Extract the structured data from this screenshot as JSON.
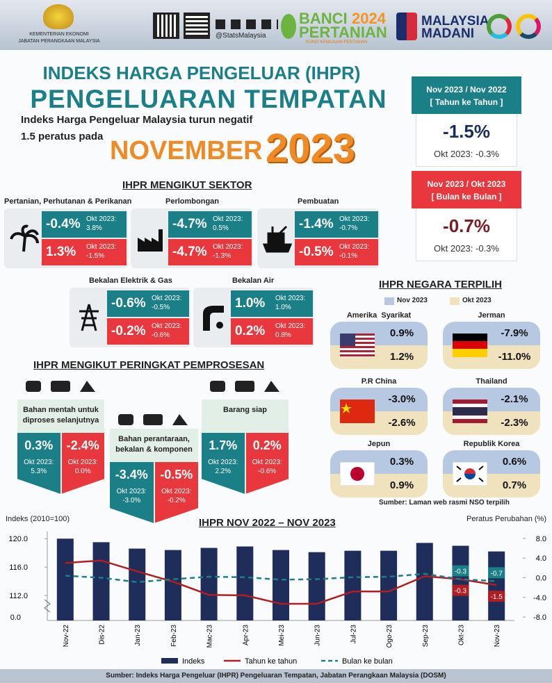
{
  "header": {
    "ministry": "KEMENTERIAN EKONOMI",
    "department": "JABATAN PERANGKAAN MALAYSIA",
    "social": "@StatsMalaysia",
    "census": {
      "line1": "BANCI",
      "year": "2024",
      "line2": "PERTANIAN",
      "tagline": "KUNCI KEMAJUAN PERTANIAN"
    },
    "madani": {
      "line1": "MALAYSIA",
      "line2": "MADANI"
    }
  },
  "title": {
    "line1": "INDEKS HARGA PENGELUAR (IHPR)",
    "line2": "PENGELUARAN TEMPATAN",
    "intro1": "Indeks Harga Pengeluar Malaysia turun negatif",
    "intro2": "1.5 peratus pada",
    "month": "NOVEMBER",
    "year": "2023"
  },
  "summary": [
    {
      "header": "Nov 2023 / Nov 2022",
      "subheader": "[ Tahun ke Tahun ]",
      "value": "-1.5%",
      "previous": "Okt 2023: -0.3%"
    },
    {
      "header": "Nov 2023 / Okt 2023",
      "subheader": "[ Bulan ke Bulan ]",
      "value": "-0.7%",
      "previous": "Okt 2023: -0.3%"
    }
  ],
  "sectors": {
    "title": "IHPR MENGIKUT SEKTOR",
    "items": [
      {
        "name": "Pertanian, Perhutanan & Perikanan",
        "yoy": "-0.4%",
        "yoy_previous": "Okt 2023: 3.8%",
        "mom": "1.3%",
        "mom_previous": "Okt 2023: -1.5%"
      },
      {
        "name": "Perlombongan",
        "yoy": "-4.7%",
        "yoy_previous": "Okt 2023: 0.5%",
        "mom": "-4.7%",
        "mom_previous": "Okt 2023: -1.3%"
      },
      {
        "name": "Pembuatan",
        "yoy": "-1.4%",
        "yoy_previous": "Okt 2023: -0.7%",
        "mom": "-0.5%",
        "mom_previous": "Okt 2023: -0.1%"
      },
      {
        "name": "Bekalan Elektrik & Gas",
        "yoy": "-0.6%",
        "yoy_previous": "Okt 2023: -0.5%",
        "mom": "-0.2%",
        "mom_previous": "Okt 2023: -0.6%"
      },
      {
        "name": "Bekalan Air",
        "yoy": "1.0%",
        "yoy_previous": "Okt 2023: 1.0%",
        "mom": "0.2%",
        "mom_previous": "Okt 2023: 0.8%"
      }
    ]
  },
  "stages": {
    "title": "IHPR MENGIKUT PERINGKAT PEMPROSESAN",
    "items": [
      {
        "name": "Bahan mentah untuk diproses selanjutnya",
        "yoy": "0.3%",
        "yoy_previous": "Okt 2023: 5.3%",
        "mom": "-2.4%",
        "mom_previous": "Okt 2023: 0.0%"
      },
      {
        "name": "Bahan perantaraan, bekalan & komponen",
        "yoy": "-3.4%",
        "yoy_previous": "Okt 2023: -3.0%",
        "mom": "-0.5%",
        "mom_previous": "Okt 2023: -0.2%"
      },
      {
        "name": "Barang siap",
        "yoy": "1.7%",
        "yoy_previous": "Okt 2023: 2.2%",
        "mom": "0.2%",
        "mom_previous": "Okt 2023: -0.6%"
      }
    ]
  },
  "countries": {
    "title": "IHPR NEGARA TERPILIH",
    "legend": [
      "Nov 2023",
      "Okt 2023"
    ],
    "items": [
      {
        "name": "Amerika  Syarikat",
        "nov": "0.9%",
        "okt": "1.2%"
      },
      {
        "name": "Jerman",
        "nov": "-7.9%",
        "okt": "-11.0%"
      },
      {
        "name": "P.R China",
        "nov": "-3.0%",
        "okt": "-2.6%"
      },
      {
        "name": "Thailand",
        "nov": "-2.1%",
        "okt": "-2.3%"
      },
      {
        "name": "Jepun",
        "nov": "0.3%",
        "okt": "0.9%"
      },
      {
        "name": "Republik Korea",
        "nov": "0.6%",
        "okt": "0.7%"
      }
    ],
    "source": "Sumber: Laman web rasmi NSO terpilih"
  },
  "chart_data": {
    "type": "combo",
    "title": "IHPR NOV 2022 – NOV 2023",
    "y_label": "Indeks (2010=100)",
    "y2_label": "Peratus Perubahan (%)",
    "categories": [
      "Nov-22",
      "Dis-22",
      "Jan-23",
      "Feb-23",
      "Mac-23",
      "Apr-23",
      "Mei-23",
      "Jun-23",
      "Jul-23",
      "Ogo-23",
      "Sep-23",
      "Okt-23",
      "Nov-23"
    ],
    "series": [
      {
        "name": "Indeks",
        "type": "bar",
        "color": "#1f2d5a",
        "values": [
          120.0,
          119.5,
          118.6,
          118.4,
          118.7,
          118.9,
          118.4,
          118.1,
          118.3,
          118.3,
          119.4,
          119.0,
          118.2
        ]
      },
      {
        "name": "Tahun ke tahun",
        "type": "line",
        "axis": "y2",
        "color": "#b01e23",
        "dashed": false,
        "values": [
          3.0,
          3.5,
          1.3,
          -0.8,
          -3.5,
          -3.6,
          -5.3,
          -5.3,
          -2.8,
          -2.8,
          0.3,
          -0.3,
          -1.5
        ]
      },
      {
        "name": "Bulan ke bulan",
        "type": "line",
        "axis": "y2",
        "color": "#1a7f86",
        "dashed": true,
        "values": [
          0.4,
          0.0,
          -0.9,
          -0.3,
          0.2,
          0.1,
          -0.4,
          -0.3,
          0.1,
          0.2,
          0.8,
          -0.3,
          -0.7
        ]
      }
    ],
    "ylim": [
      108.5,
      121
    ],
    "yticks": [
      {
        "value": 112,
        "label": "112.0"
      },
      {
        "value": 116,
        "label": "116.0"
      },
      {
        "value": 120,
        "label": "120.0"
      }
    ],
    "y_axis_break_label": "0.0",
    "y2lim": [
      -8.7,
      9.4
    ],
    "y2ticks": [
      {
        "value": 8,
        "label": "8.0"
      },
      {
        "value": 4,
        "label": "4.0"
      },
      {
        "value": 0,
        "label": "0.0"
      },
      {
        "value": -4,
        "label": "-4.0"
      },
      {
        "value": -8,
        "label": "-8.0"
      }
    ],
    "grid": false
  },
  "footer": "Sumber: Indeks Harga Pengeluar (IHPR) Pengeluaran Tempatan, Jabatan Perangkaan Malaysia (DOSM)"
}
